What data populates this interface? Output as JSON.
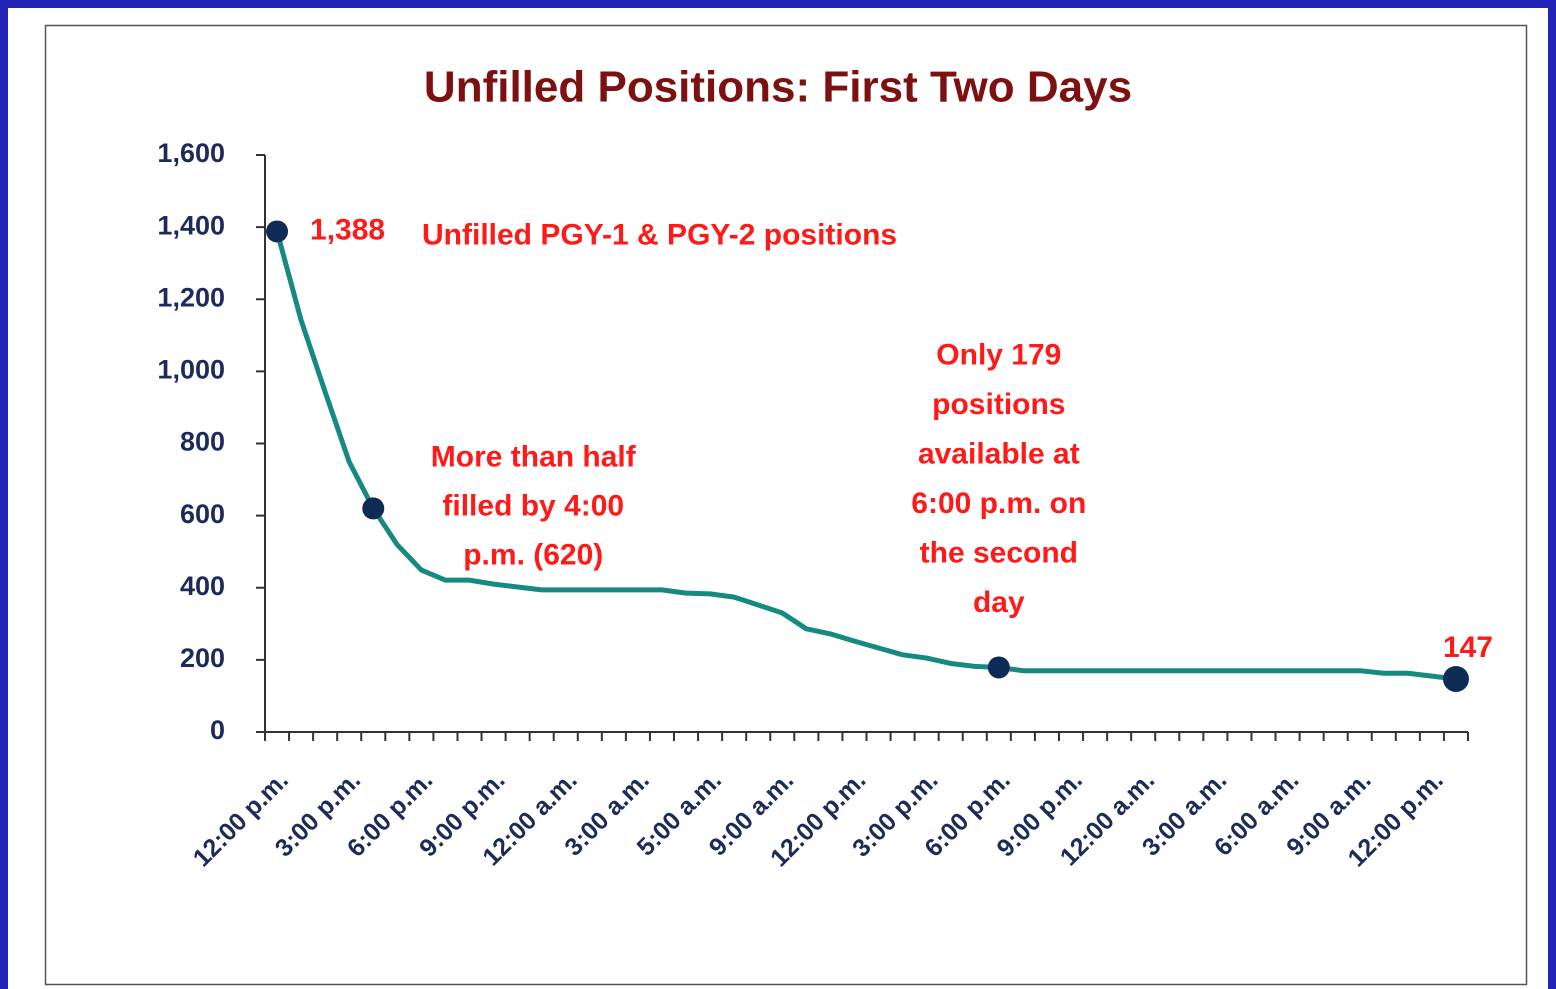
{
  "chart_data": {
    "type": "line",
    "title": "Unfilled Positions: First Two Days",
    "categories": [
      "12:00 p.m.",
      null,
      null,
      "3:00 p.m.",
      null,
      null,
      "6:00 p.m.",
      null,
      null,
      "9:00 p.m.",
      null,
      null,
      "12:00 a.m.",
      null,
      null,
      "3:00 a.m.",
      null,
      null,
      "5:00 a.m.",
      null,
      null,
      "9:00 a.m.",
      null,
      null,
      "12:00 p.m.",
      null,
      null,
      "3:00 p.m.",
      null,
      null,
      "6:00 p.m.",
      null,
      null,
      "9:00 p.m.",
      null,
      null,
      "12:00 a.m.",
      null,
      null,
      "3:00 a.m.",
      null,
      null,
      "6:00 a.m.",
      null,
      null,
      "9:00 a.m.",
      null,
      null,
      "12:00 p.m.",
      null
    ],
    "values": [
      1388,
      1142,
      943,
      749,
      620,
      519,
      449,
      421,
      421,
      410,
      402,
      394,
      394,
      394,
      394,
      394,
      394,
      385,
      383,
      374,
      352,
      330,
      286,
      272,
      252,
      233,
      214,
      205,
      190,
      182,
      179,
      170,
      170,
      170,
      170,
      170,
      170,
      170,
      170,
      170,
      170,
      170,
      170,
      170,
      170,
      170,
      163,
      163,
      155,
      147
    ],
    "value_labels": [
      "1,388",
      null,
      null,
      null,
      null,
      null,
      null,
      null,
      null,
      null,
      null,
      null,
      null,
      null,
      null,
      null,
      null,
      null,
      null,
      null,
      null,
      null,
      null,
      null,
      null,
      null,
      null,
      null,
      null,
      null,
      null,
      null,
      null,
      null,
      null,
      null,
      null,
      null,
      null,
      null,
      null,
      null,
      null,
      null,
      null,
      null,
      null,
      null,
      null,
      "147"
    ],
    "color": "#168a80",
    "marker_color": "#0d2b55",
    "annotations": [
      {
        "point": 0,
        "lines": [
          "Unfilled PGY-1 & PGY-2 positions"
        ]
      },
      {
        "point": 4,
        "lines": [
          "More than half",
          "filled by 4:00",
          "p.m. (620)"
        ]
      },
      {
        "point": 30,
        "lines": [
          "Only 179",
          "positions",
          "available at",
          "6:00 p.m. on",
          "the second",
          "day"
        ]
      },
      {
        "point": 49,
        "lines": []
      }
    ],
    "ylim": [
      0,
      1600
    ],
    "yticks": [
      0,
      200,
      400,
      600,
      800,
      {
        "value": 1000,
        "label": "1,000"
      },
      {
        "value": 1200,
        "label": "1,200"
      },
      {
        "value": 1400,
        "label": "1,400"
      },
      {
        "value": 1600,
        "label": "1,600"
      }
    ],
    "grid": false
  }
}
